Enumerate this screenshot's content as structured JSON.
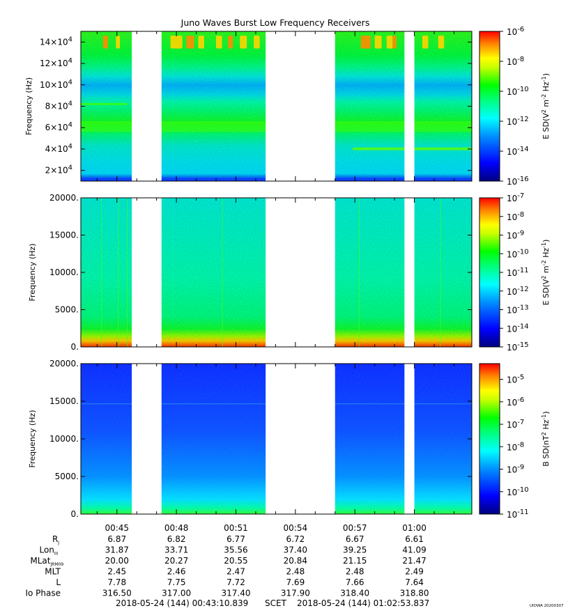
{
  "title": "Juno Waves Burst Low Frequency Receivers",
  "footer": {
    "scet_start": "2018-05-24 (144) 00:43:10.839",
    "scet_label": "SCET",
    "scet_end": "2018-05-24 (144) 01:02:53.837",
    "credit": "UIOWA 20200307"
  },
  "colors": {
    "background": "#ffffff",
    "axes": "#000000",
    "gap": "#ffffff"
  },
  "colormap": [
    "#000080",
    "#0000ff",
    "#0080ff",
    "#00ffff",
    "#00ff80",
    "#00ff00",
    "#80ff00",
    "#ffff00",
    "#ff8000",
    "#ff0000"
  ],
  "chart_data": [
    {
      "type": "heatmap",
      "panel": "top",
      "ylabel": "Frequency (Hz)",
      "y_ticks": [
        {
          "value": 20000,
          "label": "2×10^4"
        },
        {
          "value": 40000,
          "label": "4×10^4"
        },
        {
          "value": 60000,
          "label": "6×10^4"
        },
        {
          "value": 80000,
          "label": "8×10^4"
        },
        {
          "value": 100000,
          "label": "10×10^4"
        },
        {
          "value": 120000,
          "label": "12×10^4"
        },
        {
          "value": 140000,
          "label": "14×10^4"
        }
      ],
      "ylim": [
        10000,
        150000
      ],
      "colorbar": {
        "label": "E SD (V² m⁻² Hz⁻¹)",
        "label_base": "E SD(V",
        "log_range": [
          -16,
          -6
        ],
        "ticks": [
          -6,
          -8,
          -10,
          -12,
          -14,
          -16
        ]
      },
      "data_gaps_minutes": [
        [
          45.75,
          47.25
        ],
        [
          52.5,
          56.0
        ],
        [
          59.5,
          60.0
        ]
      ],
      "features": "Bands near 6×10^4 Hz and 4×10^4 Hz; intense bursts near 14×10^4 Hz"
    },
    {
      "type": "heatmap",
      "panel": "middle",
      "ylabel": "Frequency (Hz)",
      "y_ticks": [
        {
          "value": 0,
          "label": "0."
        },
        {
          "value": 5000,
          "label": "5000."
        },
        {
          "value": 10000,
          "label": "10000."
        },
        {
          "value": 15000,
          "label": "15000."
        },
        {
          "value": 20000,
          "label": "20000."
        }
      ],
      "ylim": [
        0,
        20000
      ],
      "colorbar": {
        "label": "E SD (V² m⁻² Hz⁻¹)",
        "label_base": "E SD(V",
        "log_range": [
          -15,
          -7
        ],
        "ticks": [
          -7,
          -8,
          -9,
          -10,
          -11,
          -12,
          -13,
          -14,
          -15
        ]
      },
      "data_gaps_minutes": [
        [
          45.75,
          47.25
        ],
        [
          52.5,
          56.0
        ],
        [
          59.5,
          60.0
        ]
      ],
      "features": "Intense emission below ~1500 Hz"
    },
    {
      "type": "heatmap",
      "panel": "bottom",
      "ylabel": "Frequency (Hz)",
      "y_ticks": [
        {
          "value": 0,
          "label": "0."
        },
        {
          "value": 5000,
          "label": "5000."
        },
        {
          "value": 10000,
          "label": "10000."
        },
        {
          "value": 15000,
          "label": "15000."
        },
        {
          "value": 20000,
          "label": "20000."
        }
      ],
      "ylim": [
        0,
        20000
      ],
      "colorbar": {
        "label": "B SD (nT² Hz⁻¹)",
        "label_base": "B SD(nT",
        "log_range": [
          -11,
          -4.3
        ],
        "ticks": [
          -5,
          -6,
          -7,
          -8,
          -9,
          -10,
          -11
        ]
      },
      "data_gaps_minutes": [
        [
          45.75,
          47.25
        ],
        [
          52.5,
          56.0
        ],
        [
          59.5,
          60.0
        ]
      ],
      "features": "Weak magnetic background, slightly enhanced at low frequency"
    }
  ],
  "x_axis": {
    "range_minutes": [
      43.181,
      62.897
    ],
    "ticks": [
      {
        "minute": 45,
        "label": "00:45"
      },
      {
        "minute": 48,
        "label": "00:48"
      },
      {
        "minute": 51,
        "label": "00:51"
      },
      {
        "minute": 54,
        "label": "00:54"
      },
      {
        "minute": 57,
        "label": "00:57"
      },
      {
        "minute": 60,
        "label": "01:00"
      }
    ]
  },
  "ephemeris": [
    {
      "key": "rj",
      "label": "R",
      "sub": "J",
      "values": [
        "6.87",
        "6.82",
        "6.77",
        "6.72",
        "6.67",
        "6.61"
      ]
    },
    {
      "key": "lon",
      "label": "Lon",
      "sub": "III",
      "values": [
        "31.87",
        "33.71",
        "35.56",
        "37.40",
        "39.25",
        "41.09"
      ]
    },
    {
      "key": "mlat",
      "label": "MLat",
      "sub": "JRM09",
      "values": [
        "20.00",
        "20.27",
        "20.55",
        "20.84",
        "21.15",
        "21.47"
      ]
    },
    {
      "key": "mlt",
      "label": "MLT",
      "sub": "",
      "values": [
        "2.45",
        "2.46",
        "2.47",
        "2.48",
        "2.48",
        "2.49"
      ]
    },
    {
      "key": "l",
      "label": "L",
      "sub": "",
      "values": [
        "7.78",
        "7.75",
        "7.72",
        "7.69",
        "7.66",
        "7.64"
      ]
    },
    {
      "key": "io",
      "label": "Io Phase",
      "sub": "",
      "values": [
        "316.50",
        "317.00",
        "317.40",
        "317.90",
        "318.40",
        "318.80"
      ]
    }
  ]
}
